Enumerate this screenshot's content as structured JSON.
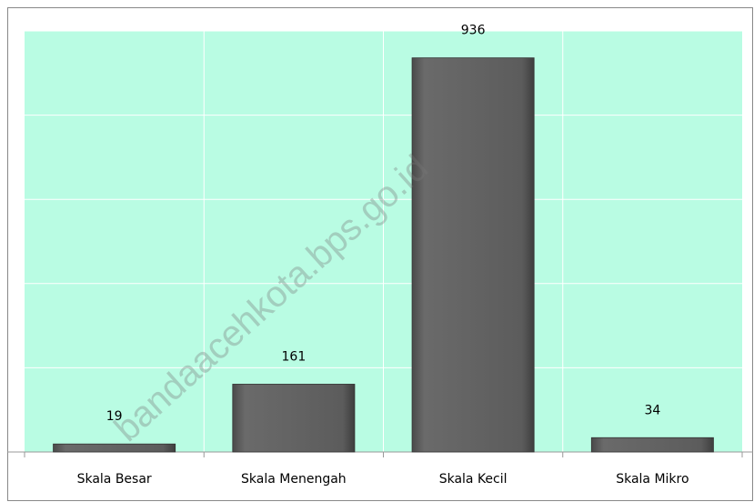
{
  "chart_data": {
    "type": "bar",
    "categories": [
      "Skala Besar",
      "Skala Menengah",
      "Skala Kecil",
      "Skala Mikro"
    ],
    "values": [
      19,
      161,
      936,
      34
    ],
    "color": "#5f5f5f",
    "ylim": [
      0,
      1000
    ],
    "yticks": [
      0,
      200,
      400,
      600,
      800,
      1000
    ],
    "grid": true,
    "watermark": "bandaacehkota.bps.go.id"
  }
}
